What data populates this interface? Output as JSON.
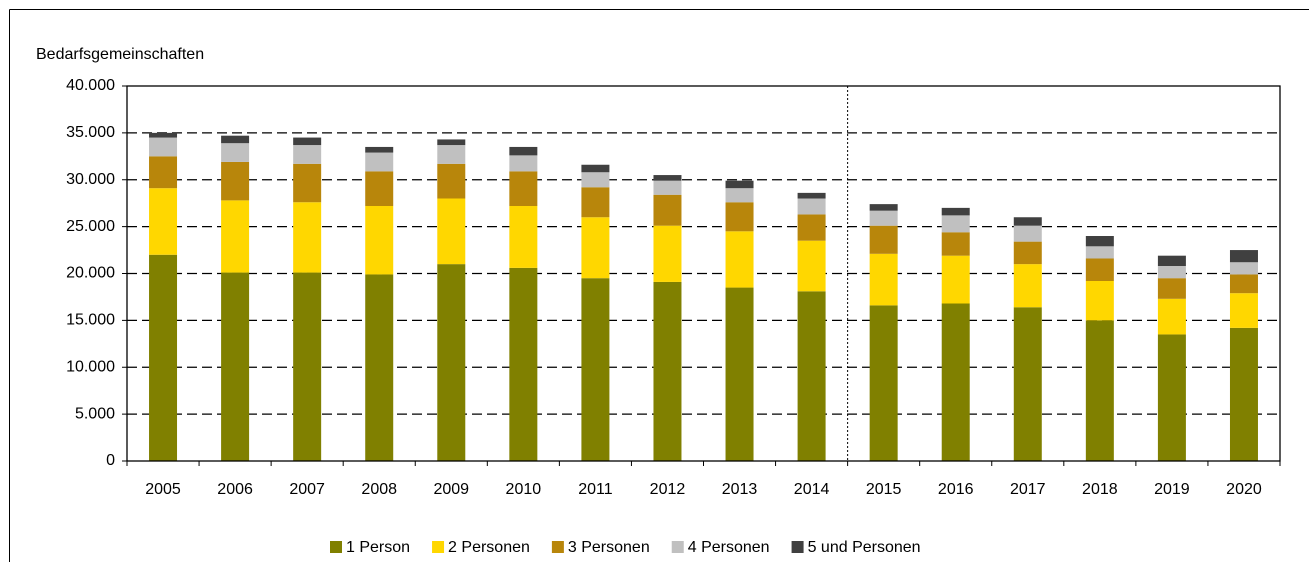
{
  "chart_data": {
    "type": "stacked_bar",
    "y_label": "Bedarfsgemeinschaften",
    "categories": [
      "2005",
      "2006",
      "2007",
      "2008",
      "2009",
      "2010",
      "2011",
      "2012",
      "2013",
      "2014",
      "2015",
      "2016",
      "2017",
      "2018",
      "2019",
      "2020"
    ],
    "series": [
      {
        "name": "1 Person",
        "color": "#808000",
        "values": [
          22000,
          20100,
          20100,
          19900,
          21000,
          20600,
          19500,
          19100,
          18500,
          18100,
          16600,
          16800,
          16400,
          15000,
          13500,
          14200
        ]
      },
      {
        "name": "2 Personen",
        "color": "#ffd700",
        "values": [
          7100,
          7700,
          7500,
          7300,
          7000,
          6600,
          6500,
          6000,
          6000,
          5400,
          5500,
          5100,
          4600,
          4200,
          3800,
          3700
        ]
      },
      {
        "name": "3 Personen",
        "color": "#b8860b",
        "values": [
          3400,
          4100,
          4100,
          3700,
          3700,
          3700,
          3200,
          3300,
          3100,
          2800,
          3000,
          2500,
          2400,
          2400,
          2200,
          2000
        ]
      },
      {
        "name": "4 Personen",
        "color": "#c0c0c0",
        "values": [
          2000,
          2000,
          2000,
          2000,
          2000,
          1700,
          1600,
          1500,
          1500,
          1700,
          1600,
          1800,
          1700,
          1300,
          1300,
          1300
        ]
      },
      {
        "name": "5 und Personen",
        "color": "#404040",
        "values": [
          500,
          800,
          800,
          600,
          600,
          900,
          800,
          600,
          800,
          600,
          700,
          800,
          900,
          1100,
          1100,
          1300
        ]
      }
    ],
    "ylim": [
      0,
      40000
    ],
    "yticks": [
      0,
      {
        "value": 5000,
        "label": "5.000"
      },
      {
        "value": 10000,
        "label": "10.000"
      },
      {
        "value": 15000,
        "label": "15.000"
      },
      {
        "value": 20000,
        "label": "20.000"
      },
      {
        "value": 25000,
        "label": "25.000"
      },
      {
        "value": 30000,
        "label": "30.000"
      },
      {
        "value": 35000,
        "label": "35.000"
      },
      {
        "value": 40000,
        "label": "40.000"
      }
    ],
    "grid": true,
    "legend": "bottom"
  }
}
